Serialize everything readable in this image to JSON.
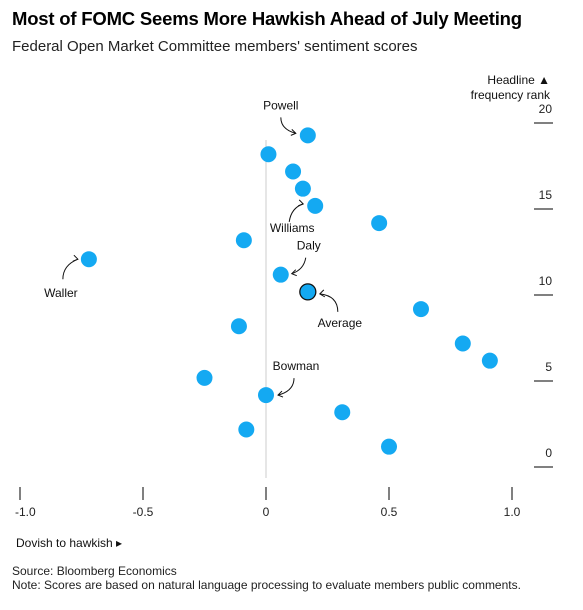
{
  "title": "Most of FOMC Seems More Hawkish Ahead of July Meeting",
  "subtitle": "Federal Open Market Committee members' sentiment scores",
  "footer": {
    "source": "Source: Bloomberg Economics",
    "note": "Note: Scores are based on natural language processing to evaluate members public comments."
  },
  "colors": {
    "dot": "#14a9f2",
    "avg_fill": "#14a9f2",
    "avg_stroke": "#111111",
    "zero_line": "#cccccc",
    "axis": "#000000"
  },
  "chart_data": {
    "type": "scatter",
    "title": "Most of FOMC Seems More Hawkish Ahead of July Meeting",
    "subtitle": "Federal Open Market Committee members' sentiment scores",
    "xlabel": "Dovish to hawkish ▸",
    "ylabel": "Headline ▲\nfrequency rank",
    "ylabel_lines": [
      "Headline ▲",
      "frequency rank"
    ],
    "xlim": [
      -1.0,
      1.0
    ],
    "ylim": [
      -1,
      20.5
    ],
    "xticks": [
      -1.0,
      -0.5,
      0,
      0.5,
      1.0
    ],
    "xtick_labels": [
      "-1.0",
      "-0.5",
      "0",
      "0.5",
      "1.0"
    ],
    "yticks": [
      0,
      5,
      10,
      15,
      20
    ],
    "ytick_labels": [
      "0",
      "5",
      "10",
      "15",
      "20"
    ],
    "grid": false,
    "points": [
      {
        "x": 0.17,
        "y": 18.7,
        "label": "Powell"
      },
      {
        "x": 0.01,
        "y": 17.6
      },
      {
        "x": 0.11,
        "y": 16.6
      },
      {
        "x": 0.15,
        "y": 15.6
      },
      {
        "x": -0.72,
        "y": 11.5,
        "label": "Waller"
      },
      {
        "x": 0.2,
        "y": 14.6,
        "label": "Williams"
      },
      {
        "x": 0.46,
        "y": 13.6
      },
      {
        "x": -0.09,
        "y": 12.6
      },
      {
        "x": 0.06,
        "y": 10.6,
        "label": "Daly"
      },
      {
        "x": 0.63,
        "y": 8.6
      },
      {
        "x": -0.11,
        "y": 7.6
      },
      {
        "x": 0.8,
        "y": 6.6
      },
      {
        "x": 0.91,
        "y": 5.6
      },
      {
        "x": -0.25,
        "y": 4.6
      },
      {
        "x": 0.0,
        "y": 3.6,
        "label": "Bowman"
      },
      {
        "x": 0.31,
        "y": 2.6
      },
      {
        "x": -0.08,
        "y": 1.6
      },
      {
        "x": 0.5,
        "y": 0.6
      }
    ],
    "average": {
      "x": 0.17,
      "y": 9.6,
      "label": "Average"
    }
  }
}
